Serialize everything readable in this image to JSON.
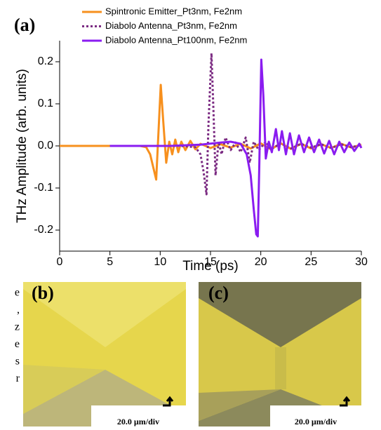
{
  "chart_data": {
    "type": "line",
    "panel_label": "(a)",
    "xlabel": "Time (ps)",
    "ylabel": "THz Amplitude (arb. units)",
    "xlim": [
      0,
      30
    ],
    "ylim": [
      -0.25,
      0.25
    ],
    "xticks": [
      0,
      5,
      10,
      15,
      20,
      25,
      30
    ],
    "yticks": [
      -0.2,
      -0.1,
      {
        "value": 0,
        "label": "0.0"
      },
      0.1,
      0.2
    ],
    "legend": "upper-left",
    "series": [
      {
        "name": "Spintronic Emitter_Pt3nm, Fe2nm",
        "color": "#f7901e",
        "style": "solid",
        "x": [
          0,
          2,
          4,
          6,
          8,
          8.6,
          9.0,
          9.3,
          9.6,
          9.8,
          10.05,
          10.3,
          10.6,
          10.9,
          11.2,
          11.5,
          11.8,
          12.1,
          12.5,
          13,
          13.5,
          14,
          15,
          16,
          17,
          18,
          19,
          20,
          21,
          22,
          23,
          24,
          25,
          26,
          27,
          28,
          29,
          30
        ],
        "values": [
          0,
          0,
          0,
          0,
          0,
          -0.003,
          -0.02,
          -0.05,
          -0.08,
          0.02,
          0.145,
          0.06,
          -0.04,
          0.01,
          -0.02,
          0.015,
          -0.015,
          0.01,
          -0.01,
          0.012,
          -0.008,
          0.005,
          -0.005,
          0.004,
          -0.004,
          0.005,
          -0.006,
          0.006,
          -0.008,
          0.006,
          -0.007,
          0.005,
          -0.006,
          0.004,
          -0.005,
          0.005,
          -0.004,
          0.003
        ]
      },
      {
        "name": "Diabolo Antenna_Pt3nm, Fe2nm",
        "color": "#7b2b82",
        "style": "dotted",
        "x": [
          5,
          8,
          12,
          13.5,
          14,
          14.3,
          14.6,
          14.8,
          15.1,
          15.3,
          15.5,
          15.8,
          16.1,
          16.5,
          17,
          17.5,
          18,
          18.5,
          18.9,
          19.3,
          19.8,
          20.5,
          21,
          22,
          23,
          24,
          25,
          26,
          27,
          28,
          29,
          30
        ],
        "values": [
          0,
          0,
          0,
          -0.003,
          -0.02,
          -0.06,
          -0.115,
          0.05,
          0.22,
          0.08,
          -0.07,
          0.01,
          -0.02,
          0.02,
          -0.01,
          0.008,
          -0.015,
          0.02,
          -0.04,
          0.01,
          -0.01,
          0.01,
          -0.008,
          0.006,
          -0.006,
          0.005,
          -0.004,
          0.004,
          -0.005,
          0.004,
          -0.003,
          0.002
        ]
      },
      {
        "name": "Diabolo Antenna_Pt100nm, Fe2nm",
        "color": "#8a1cf0",
        "style": "solid",
        "x": [
          5,
          8,
          11,
          14,
          16,
          17,
          18,
          18.6,
          19.0,
          19.3,
          19.55,
          19.7,
          19.85,
          20.05,
          20.25,
          20.5,
          20.8,
          21.1,
          21.5,
          21.8,
          22.1,
          22.5,
          22.9,
          23.3,
          23.8,
          24.3,
          24.8,
          25.3,
          25.8,
          26.3,
          26.8,
          27.3,
          27.8,
          28.3,
          28.8,
          29.3,
          29.8,
          30
        ],
        "values": [
          0,
          0,
          0,
          0.003,
          0.008,
          0.01,
          0.005,
          -0.02,
          -0.07,
          -0.15,
          -0.21,
          -0.215,
          -0.05,
          0.205,
          0.12,
          -0.03,
          0.01,
          -0.015,
          0.04,
          -0.01,
          0.035,
          -0.02,
          0.03,
          -0.02,
          0.025,
          -0.015,
          0.02,
          -0.015,
          0.015,
          -0.018,
          0.012,
          -0.02,
          0.01,
          -0.015,
          0.008,
          -0.012,
          0.005,
          -0.005
        ]
      }
    ]
  },
  "panels": {
    "b": {
      "label": "(b)",
      "scale": "20.0 µm/div"
    },
    "c": {
      "label": "(c)",
      "scale": "20.0 µm/div"
    }
  },
  "left_text_fragments": [
    "e",
    ",",
    "z",
    "e",
    "s",
    "r"
  ]
}
